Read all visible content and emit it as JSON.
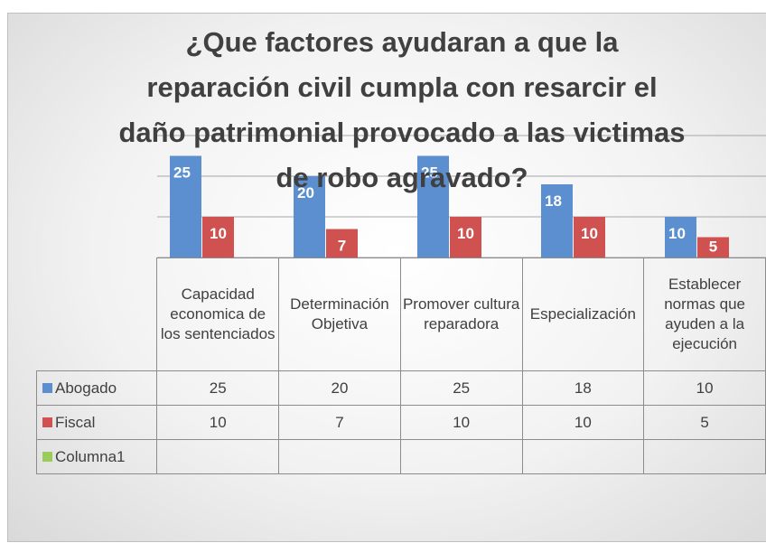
{
  "chart_data": {
    "type": "bar",
    "title": "¿Que factores ayudaran a que la reparación civil cumpla con resarcir el daño patrimonial provocado a las victimas de robo agravado?",
    "categories": [
      "Capacidad economica de los sentenciados",
      "Determinación Objetiva",
      "Promover cultura reparadora",
      "Especialización",
      "Establecer normas que ayuden a la ejecución"
    ],
    "series": [
      {
        "name": "Abogado",
        "color": "#5b8fd0",
        "values": [
          25,
          20,
          25,
          18,
          10
        ]
      },
      {
        "name": "Fiscal",
        "color": "#cf5250",
        "values": [
          10,
          7,
          10,
          10,
          5
        ]
      },
      {
        "name": "Columna1",
        "color": "#9bcb59",
        "values": [
          null,
          null,
          null,
          null,
          null
        ]
      }
    ],
    "ylim": [
      0,
      30
    ],
    "yticks": [
      0,
      10,
      20,
      30
    ],
    "grid": true,
    "data_table": true
  }
}
